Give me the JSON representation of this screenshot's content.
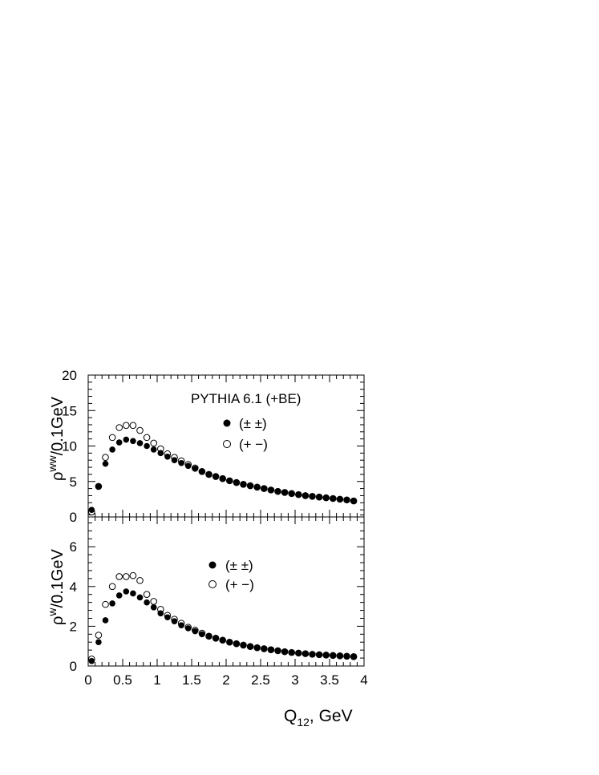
{
  "chart_data": [
    {
      "type": "scatter",
      "title": "",
      "annotation": "PYTHIA 6.1 (+BE)",
      "ylabel_main": "ρ",
      "ylabel_sup": "ww",
      "ylabel_rest": "/0.1GeV",
      "xlim": [
        0,
        4
      ],
      "ylim": [
        0,
        20
      ],
      "yticks": [
        "0",
        "5",
        "10",
        "15",
        "20"
      ],
      "yticks_values": [
        0,
        5,
        10,
        15,
        20
      ],
      "legend_placement": "top-right",
      "series": [
        {
          "name": "(± ±)",
          "marker": "filled",
          "x": [
            0.05,
            0.15,
            0.25,
            0.35,
            0.45,
            0.55,
            0.65,
            0.75,
            0.85,
            0.95,
            1.05,
            1.15,
            1.25,
            1.35,
            1.45,
            1.55,
            1.65,
            1.75,
            1.85,
            1.95,
            2.05,
            2.15,
            2.25,
            2.35,
            2.45,
            2.55,
            2.65,
            2.75,
            2.85,
            2.95,
            3.05,
            3.15,
            3.25,
            3.35,
            3.45,
            3.55,
            3.65,
            3.75,
            3.85
          ],
          "values": [
            1.0,
            4.3,
            7.5,
            9.5,
            10.5,
            10.9,
            10.7,
            10.4,
            10.0,
            9.5,
            9.0,
            8.5,
            8.0,
            7.6,
            7.2,
            6.8,
            6.4,
            6.0,
            5.7,
            5.4,
            5.1,
            4.85,
            4.6,
            4.4,
            4.2,
            4.0,
            3.8,
            3.6,
            3.45,
            3.3,
            3.15,
            3.0,
            2.9,
            2.8,
            2.7,
            2.6,
            2.5,
            2.4,
            2.25
          ]
        },
        {
          "name": "(+ −)",
          "marker": "open",
          "x": [
            0.05,
            0.15,
            0.25,
            0.35,
            0.45,
            0.55,
            0.65,
            0.75,
            0.85,
            0.95,
            1.05,
            1.15,
            1.25,
            1.35,
            1.45,
            1.55,
            1.65,
            1.75,
            1.85,
            1.95,
            2.05,
            2.15,
            2.25,
            2.35,
            2.45,
            2.55,
            2.65,
            2.75,
            2.85,
            2.95,
            3.05,
            3.15,
            3.25,
            3.35,
            3.45,
            3.55,
            3.65,
            3.75,
            3.85
          ],
          "values": [
            0.7,
            4.3,
            8.4,
            11.2,
            12.6,
            12.9,
            12.9,
            12.2,
            11.2,
            10.4,
            9.6,
            8.9,
            8.4,
            7.9,
            7.4,
            6.9,
            6.4,
            6.0,
            5.7,
            5.4,
            5.1,
            4.85,
            4.6,
            4.4,
            4.2,
            4.0,
            3.8,
            3.6,
            3.45,
            3.3,
            3.15,
            3.0,
            2.9,
            2.8,
            2.7,
            2.6,
            2.5,
            2.4,
            2.25
          ]
        }
      ]
    },
    {
      "type": "scatter",
      "title": "",
      "ylabel_main": "ρ",
      "ylabel_sup": "w",
      "ylabel_rest": "/0.1GeV",
      "xlabel_main": "Q",
      "xlabel_sub": "12",
      "xlabel_rest": ", GeV",
      "xlim": [
        0,
        4
      ],
      "ylim": [
        0,
        7.5
      ],
      "xticks": [
        "0",
        "0.5",
        "1",
        "1.5",
        "2",
        "2.5",
        "3",
        "3.5",
        "4"
      ],
      "xticks_values": [
        0,
        0.5,
        1,
        1.5,
        2,
        2.5,
        3,
        3.5,
        4
      ],
      "yticks": [
        "0",
        "2",
        "4",
        "6"
      ],
      "yticks_values": [
        0,
        2,
        4,
        6
      ],
      "legend_placement": "top-center",
      "series": [
        {
          "name": "(± ±)",
          "marker": "filled",
          "x": [
            0.05,
            0.15,
            0.25,
            0.35,
            0.45,
            0.55,
            0.65,
            0.75,
            0.85,
            0.95,
            1.05,
            1.15,
            1.25,
            1.35,
            1.45,
            1.55,
            1.65,
            1.75,
            1.85,
            1.95,
            2.05,
            2.15,
            2.25,
            2.35,
            2.45,
            2.55,
            2.65,
            2.75,
            2.85,
            2.95,
            3.05,
            3.15,
            3.25,
            3.35,
            3.45,
            3.55,
            3.65,
            3.75,
            3.85
          ],
          "values": [
            0.25,
            1.2,
            2.3,
            3.15,
            3.55,
            3.75,
            3.65,
            3.45,
            3.2,
            2.95,
            2.65,
            2.45,
            2.25,
            2.05,
            1.9,
            1.75,
            1.6,
            1.5,
            1.4,
            1.3,
            1.2,
            1.12,
            1.05,
            0.98,
            0.92,
            0.87,
            0.82,
            0.77,
            0.72,
            0.68,
            0.65,
            0.62,
            0.59,
            0.57,
            0.55,
            0.53,
            0.51,
            0.49,
            0.47
          ]
        },
        {
          "name": "(+ −)",
          "marker": "open",
          "x": [
            0.05,
            0.15,
            0.25,
            0.35,
            0.45,
            0.55,
            0.65,
            0.75,
            0.85,
            0.95,
            1.05,
            1.15,
            1.25,
            1.35,
            1.45,
            1.55,
            1.65,
            1.75,
            1.85,
            1.95,
            2.05,
            2.15,
            2.25,
            2.35,
            2.45,
            2.55,
            2.65,
            2.75,
            2.85,
            2.95,
            3.05,
            3.15,
            3.25,
            3.35,
            3.45,
            3.55,
            3.65,
            3.75,
            3.85
          ],
          "values": [
            0.35,
            1.55,
            3.1,
            4.0,
            4.5,
            4.5,
            4.55,
            4.3,
            3.6,
            3.25,
            2.85,
            2.55,
            2.35,
            2.15,
            1.95,
            1.8,
            1.65,
            1.5,
            1.4,
            1.3,
            1.2,
            1.12,
            1.05,
            0.98,
            0.92,
            0.87,
            0.82,
            0.77,
            0.72,
            0.68,
            0.65,
            0.62,
            0.59,
            0.57,
            0.55,
            0.53,
            0.51,
            0.49,
            0.47
          ]
        }
      ]
    }
  ]
}
